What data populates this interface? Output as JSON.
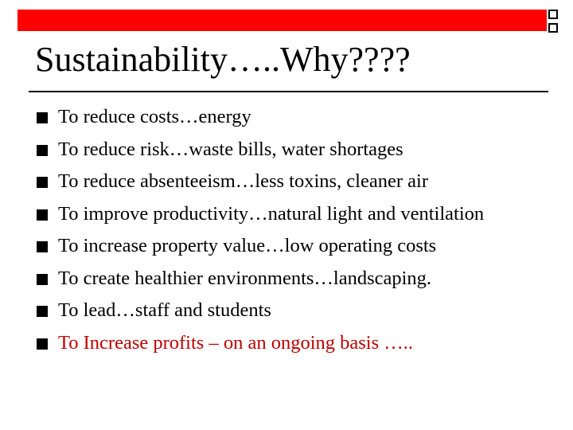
{
  "slide": {
    "title": "Sustainability…..Why????",
    "bullets": [
      {
        "text": "To reduce costs…energy"
      },
      {
        "text": "To reduce risk…waste bills, water shortages"
      },
      {
        "text": "To reduce absenteeism…less toxins, cleaner air"
      },
      {
        "text": "To improve productivity…natural light and ventilation"
      },
      {
        "text": "To increase property value…low operating costs"
      },
      {
        "text": "To create healthier environments…landscaping."
      },
      {
        "text": "To lead…staff and students"
      },
      {
        "text": "To Increase profits – on an ongoing basis ….."
      }
    ]
  },
  "colors": {
    "header_bar": "#ff0000",
    "highlight_text": "#c00000",
    "text": "#000000"
  }
}
